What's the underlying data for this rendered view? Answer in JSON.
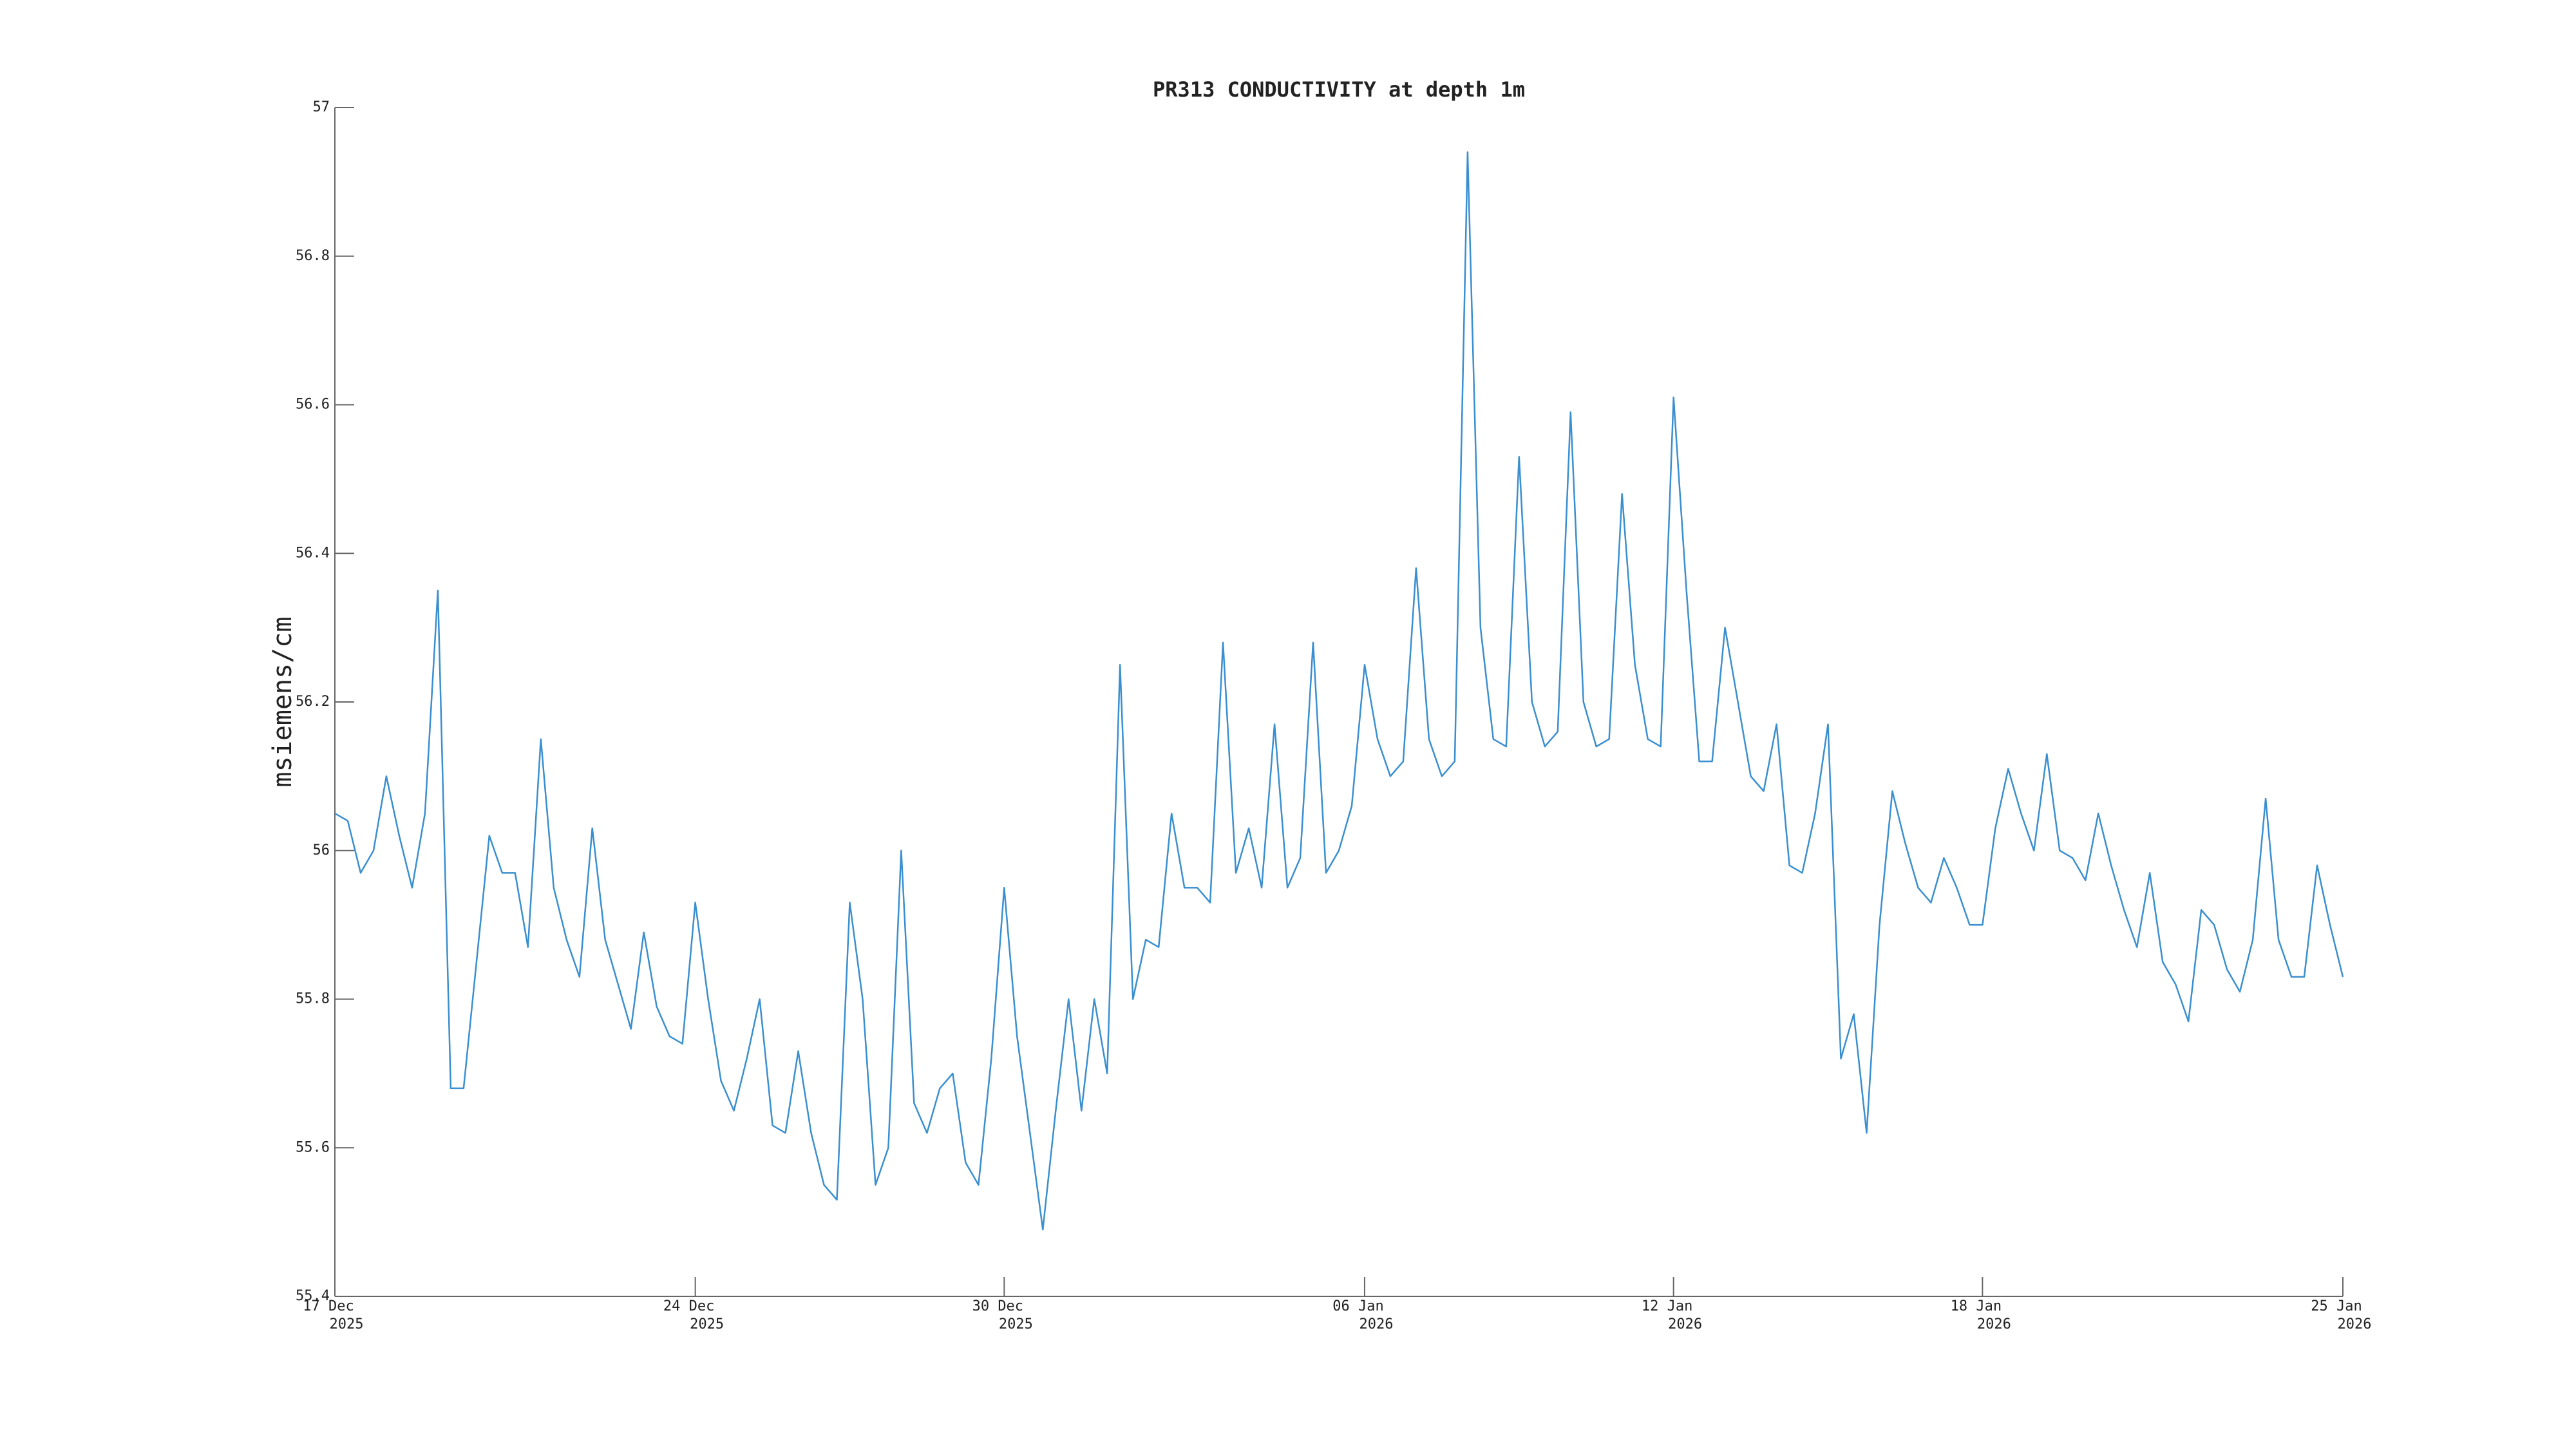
{
  "chart_data": {
    "type": "line",
    "title": "PR313 CONDUCTIVITY at depth 1m",
    "ylabel": "msiemens/cm",
    "color": "#3a8fd0",
    "xlim": [
      "2025-12-17",
      "2026-01-25"
    ],
    "xticks": [
      {
        "value": "2025-12-17",
        "label": [
          "17 Dec",
          "2025"
        ]
      },
      {
        "value": "2025-12-24",
        "label": [
          "24 Dec",
          "2025"
        ]
      },
      {
        "value": "2025-12-30",
        "label": [
          "30 Dec",
          "2025"
        ]
      },
      {
        "value": "2026-01-06",
        "label": [
          "06 Jan",
          "2026"
        ]
      },
      {
        "value": "2026-01-12",
        "label": [
          "12 Jan",
          "2026"
        ]
      },
      {
        "value": "2026-01-18",
        "label": [
          "18 Jan",
          "2026"
        ]
      },
      {
        "value": "2026-01-25",
        "label": [
          "25 Jan",
          "2026"
        ]
      }
    ],
    "ylim": [
      55.4,
      57
    ],
    "yticks": [
      55.4,
      55.6,
      55.8,
      56,
      56.2,
      56.4,
      56.6,
      56.8,
      57
    ],
    "x": [
      "2025-12-17T00:00",
      "2025-12-17T06:00",
      "2025-12-17T12:00",
      "2025-12-17T18:00",
      "2025-12-18T00:00",
      "2025-12-18T06:00",
      "2025-12-18T12:00",
      "2025-12-18T18:00",
      "2025-12-19T00:00",
      "2025-12-19T06:00",
      "2025-12-19T12:00",
      "2025-12-19T18:00",
      "2025-12-20T00:00",
      "2025-12-20T06:00",
      "2025-12-20T12:00",
      "2025-12-20T18:00",
      "2025-12-21T00:00",
      "2025-12-21T06:00",
      "2025-12-21T12:00",
      "2025-12-21T18:00",
      "2025-12-22T00:00",
      "2025-12-22T06:00",
      "2025-12-22T12:00",
      "2025-12-22T18:00",
      "2025-12-23T00:00",
      "2025-12-23T06:00",
      "2025-12-23T12:00",
      "2025-12-23T18:00",
      "2025-12-24T00:00",
      "2025-12-24T06:00",
      "2025-12-24T12:00",
      "2025-12-24T18:00",
      "2025-12-25T00:00",
      "2025-12-25T06:00",
      "2025-12-25T12:00",
      "2025-12-25T18:00",
      "2025-12-26T00:00",
      "2025-12-26T06:00",
      "2025-12-26T12:00",
      "2025-12-26T18:00",
      "2025-12-27T00:00",
      "2025-12-27T06:00",
      "2025-12-27T12:00",
      "2025-12-27T18:00",
      "2025-12-28T00:00",
      "2025-12-28T06:00",
      "2025-12-28T12:00",
      "2025-12-28T18:00",
      "2025-12-29T00:00",
      "2025-12-29T06:00",
      "2025-12-29T12:00",
      "2025-12-29T18:00",
      "2025-12-30T00:00",
      "2025-12-30T06:00",
      "2025-12-30T12:00",
      "2025-12-30T18:00",
      "2025-12-31T00:00",
      "2025-12-31T06:00",
      "2025-12-31T12:00",
      "2025-12-31T18:00",
      "2026-01-01T00:00",
      "2026-01-01T06:00",
      "2026-01-01T12:00",
      "2026-01-01T18:00",
      "2026-01-02T00:00",
      "2026-01-02T06:00",
      "2026-01-02T12:00",
      "2026-01-02T18:00",
      "2026-01-03T00:00",
      "2026-01-03T06:00",
      "2026-01-03T12:00",
      "2026-01-03T18:00",
      "2026-01-04T00:00",
      "2026-01-04T06:00",
      "2026-01-04T12:00",
      "2026-01-04T18:00",
      "2026-01-05T00:00",
      "2026-01-05T06:00",
      "2026-01-05T12:00",
      "2026-01-05T18:00",
      "2026-01-06T00:00",
      "2026-01-06T06:00",
      "2026-01-06T12:00",
      "2026-01-06T18:00",
      "2026-01-07T00:00",
      "2026-01-07T06:00",
      "2026-01-07T12:00",
      "2026-01-07T18:00",
      "2026-01-08T00:00",
      "2026-01-08T06:00",
      "2026-01-08T12:00",
      "2026-01-08T18:00",
      "2026-01-09T00:00",
      "2026-01-09T06:00",
      "2026-01-09T12:00",
      "2026-01-09T18:00",
      "2026-01-10T00:00",
      "2026-01-10T06:00",
      "2026-01-10T12:00",
      "2026-01-10T18:00",
      "2026-01-11T00:00",
      "2026-01-11T06:00",
      "2026-01-11T12:00",
      "2026-01-11T18:00",
      "2026-01-12T00:00",
      "2026-01-12T06:00",
      "2026-01-12T12:00",
      "2026-01-12T18:00",
      "2026-01-13T00:00",
      "2026-01-13T06:00",
      "2026-01-13T12:00",
      "2026-01-13T18:00",
      "2026-01-14T00:00",
      "2026-01-14T06:00",
      "2026-01-14T12:00",
      "2026-01-14T18:00",
      "2026-01-15T00:00",
      "2026-01-15T06:00",
      "2026-01-15T12:00",
      "2026-01-15T18:00",
      "2026-01-16T00:00",
      "2026-01-16T06:00",
      "2026-01-16T12:00",
      "2026-01-16T18:00",
      "2026-01-17T00:00",
      "2026-01-17T06:00",
      "2026-01-17T12:00",
      "2026-01-17T18:00",
      "2026-01-18T00:00",
      "2026-01-18T06:00",
      "2026-01-18T12:00",
      "2026-01-18T18:00",
      "2026-01-19T00:00",
      "2026-01-19T06:00",
      "2026-01-19T12:00",
      "2026-01-19T18:00",
      "2026-01-20T00:00",
      "2026-01-20T06:00",
      "2026-01-20T12:00",
      "2026-01-20T18:00",
      "2026-01-21T00:00",
      "2026-01-21T06:00",
      "2026-01-21T12:00",
      "2026-01-21T18:00",
      "2026-01-22T00:00",
      "2026-01-22T06:00",
      "2026-01-22T12:00",
      "2026-01-22T18:00",
      "2026-01-23T00:00",
      "2026-01-23T06:00",
      "2026-01-23T12:00",
      "2026-01-23T18:00",
      "2026-01-24T00:00",
      "2026-01-24T06:00",
      "2026-01-24T12:00",
      "2026-01-24T18:00",
      "2026-01-25T00:00"
    ],
    "values": [
      56.05,
      56.04,
      55.97,
      56.0,
      56.1,
      56.02,
      55.95,
      56.05,
      56.35,
      55.68,
      55.68,
      55.85,
      56.02,
      55.97,
      55.97,
      55.87,
      56.15,
      55.95,
      55.88,
      55.83,
      56.03,
      55.88,
      55.82,
      55.76,
      55.89,
      55.79,
      55.75,
      55.74,
      55.93,
      55.8,
      55.69,
      55.65,
      55.72,
      55.8,
      55.63,
      55.62,
      55.73,
      55.62,
      55.55,
      55.53,
      55.93,
      55.8,
      55.55,
      55.6,
      56.0,
      55.66,
      55.62,
      55.68,
      55.7,
      55.58,
      55.55,
      55.72,
      55.95,
      55.75,
      55.62,
      55.49,
      55.65,
      55.8,
      55.65,
      55.8,
      55.7,
      56.25,
      55.8,
      55.88,
      55.87,
      56.05,
      55.95,
      55.95,
      55.93,
      56.28,
      55.97,
      56.03,
      55.95,
      56.17,
      55.95,
      55.99,
      56.28,
      55.97,
      56.0,
      56.06,
      56.25,
      56.15,
      56.1,
      56.12,
      56.38,
      56.15,
      56.1,
      56.12,
      56.94,
      56.3,
      56.15,
      56.14,
      56.53,
      56.2,
      56.14,
      56.16,
      56.59,
      56.2,
      56.14,
      56.15,
      56.48,
      56.25,
      56.15,
      56.14,
      56.61,
      56.35,
      56.12,
      56.12,
      56.3,
      56.2,
      56.1,
      56.08,
      56.17,
      55.98,
      55.97,
      56.05,
      56.17,
      55.72,
      55.78,
      55.62,
      55.9,
      56.08,
      56.01,
      55.95,
      55.93,
      55.99,
      55.95,
      55.9,
      55.9,
      56.03,
      56.11,
      56.05,
      56.0,
      56.13,
      56.0,
      55.99,
      55.96,
      56.05,
      55.98,
      55.92,
      55.87,
      55.97,
      55.85,
      55.82,
      55.77,
      55.92,
      55.9,
      55.84,
      55.81,
      55.88,
      56.07,
      55.88,
      55.83,
      55.83,
      55.98,
      55.9,
      55.83
    ]
  }
}
